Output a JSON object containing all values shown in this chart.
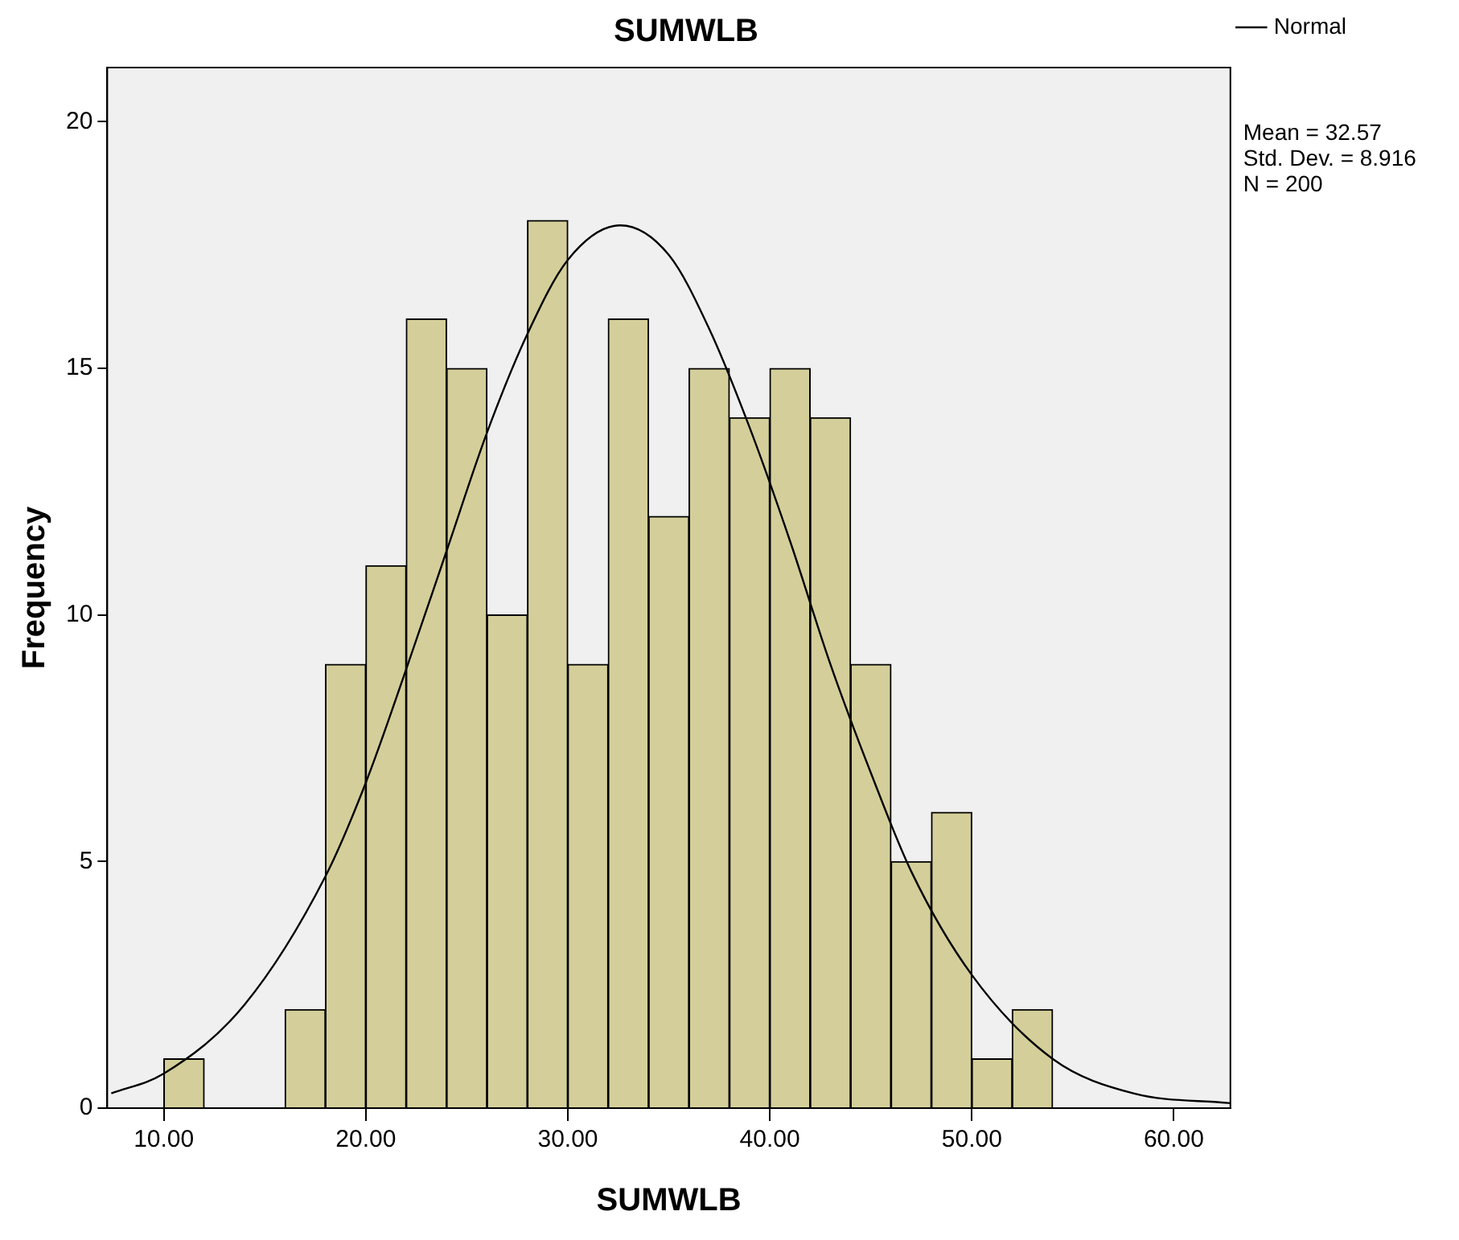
{
  "chart_data": {
    "type": "histogram",
    "title": "SUMWLB",
    "xlabel": "SUMWLB",
    "ylabel": "Frequency",
    "bins": [
      10,
      12,
      14,
      16,
      18,
      20,
      22,
      24,
      26,
      28,
      30,
      32,
      34,
      36,
      38,
      40,
      42,
      44,
      46,
      48,
      50,
      52,
      54
    ],
    "values": [
      1,
      0,
      0,
      2,
      9,
      11,
      16,
      15,
      10,
      18,
      9,
      16,
      12,
      15,
      14,
      15,
      14,
      9,
      5,
      6,
      1,
      2
    ],
    "color": "#d4cf9a",
    "series": [
      {
        "name": "Normal",
        "type": "line",
        "color": "#000000",
        "x": [
          7.4,
          10,
          14,
          18,
          20,
          22,
          24,
          26,
          28,
          30,
          32.6,
          35,
          37,
          39,
          41,
          43,
          45,
          47,
          50,
          54,
          58,
          62.8
        ],
        "values": [
          0.3,
          0.7,
          2.1,
          4.7,
          6.6,
          8.9,
          11.3,
          13.7,
          15.7,
          17.2,
          17.9,
          17.3,
          15.8,
          13.8,
          11.5,
          9.0,
          6.8,
          4.8,
          2.7,
          1.0,
          0.3,
          0.1
        ]
      }
    ],
    "xlim": [
      7.2,
      62.8
    ],
    "xticks": [
      {
        "value": 10,
        "label": "10.00"
      },
      {
        "value": 20,
        "label": "20.00"
      },
      {
        "value": 30,
        "label": "30.00"
      },
      {
        "value": 40,
        "label": "40.00"
      },
      {
        "value": 50,
        "label": "50.00"
      },
      {
        "value": 60,
        "label": "60.00"
      }
    ],
    "ylim": [
      0,
      21.1
    ],
    "yticks": [
      0,
      5,
      10,
      15,
      20
    ],
    "grid": false,
    "legend": "top right",
    "marker": "none",
    "line_style": "solid",
    "annotations": [
      "Mean = 32.57",
      "Std. Dev. = 8.916",
      "N = 200"
    ]
  }
}
